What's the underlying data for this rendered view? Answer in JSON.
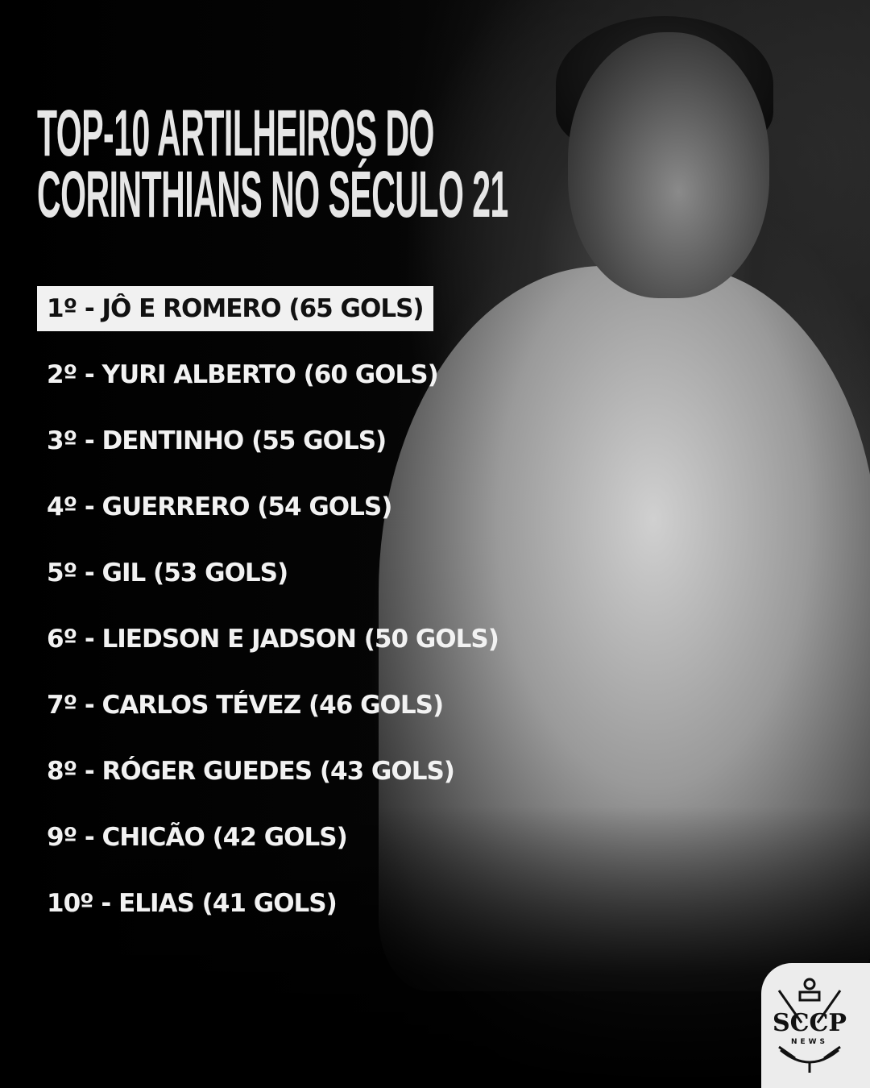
{
  "title": {
    "line1": "TOP-10 ARTILHEIROS DO",
    "line2": "CORINTHIANS NO SÉCULO 21"
  },
  "ranking": [
    {
      "label": "1º - JÔ E ROMERO (65 GOLS)",
      "highlighted": true
    },
    {
      "label": "2º - YURI ALBERTO (60 GOLS)"
    },
    {
      "label": "3º - DENTINHO (55 GOLS)"
    },
    {
      "label": "4º - GUERRERO (54 GOLS)"
    },
    {
      "label": "5º - GIL (53 GOLS)"
    },
    {
      "label": "6º - LIEDSON E JADSON (50 GOLS)"
    },
    {
      "label": "7º - CARLOS TÉVEZ (46 GOLS)"
    },
    {
      "label": "8º - RÓGER GUEDES (43 GOLS)"
    },
    {
      "label": "9º - CHICÃO (42 GOLS)"
    },
    {
      "label": "10º - ELIAS (41 GOLS)"
    }
  ],
  "logo": {
    "text": "SCCP",
    "subtext": "NEWS"
  },
  "colors": {
    "background": "#000000",
    "text": "#f2f2f2",
    "highlight_bg": "#f1f1f1",
    "highlight_text": "#111111"
  }
}
